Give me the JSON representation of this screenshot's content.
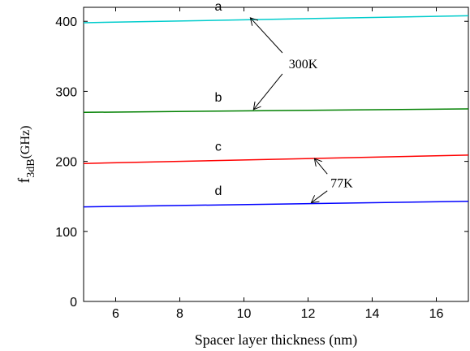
{
  "chart_data": {
    "type": "line",
    "title": "",
    "xlabel": "Spacer layer thickness (nm)",
    "ylabel": {
      "main": "f",
      "sub": "3dB",
      "unit": "(GHz)"
    },
    "xlim": [
      5,
      17
    ],
    "ylim": [
      0,
      420
    ],
    "xticks": [
      6,
      8,
      10,
      12,
      14,
      16
    ],
    "yticks": [
      0,
      100,
      200,
      300,
      400
    ],
    "grid": false,
    "legend": "none",
    "series": [
      {
        "label": "a",
        "color": "#00cccc",
        "x": [
          5,
          17
        ],
        "y": [
          398,
          408
        ]
      },
      {
        "label": "b",
        "color": "#008000",
        "x": [
          5,
          17
        ],
        "y": [
          270,
          275
        ]
      },
      {
        "label": "c",
        "color": "#ff0000",
        "x": [
          5,
          17
        ],
        "y": [
          197,
          209
        ]
      },
      {
        "label": "d",
        "color": "#0000ff",
        "x": [
          5,
          17
        ],
        "y": [
          135,
          143
        ]
      }
    ],
    "annotations": [
      {
        "text": "300K",
        "text_at": [
          11.4,
          340
        ],
        "arrows": [
          {
            "from": [
              11.2,
              355
            ],
            "to": [
              10.2,
              405
            ]
          },
          {
            "from": [
              11.2,
              325
            ],
            "to": [
              10.3,
              274
            ]
          }
        ]
      },
      {
        "text": "77K",
        "text_at": [
          12.7,
          170
        ],
        "arrows": [
          {
            "from": [
              12.6,
              182
            ],
            "to": [
              12.2,
              204
            ]
          },
          {
            "from": [
              12.6,
              158
            ],
            "to": [
              12.1,
              141
            ]
          }
        ]
      }
    ]
  }
}
